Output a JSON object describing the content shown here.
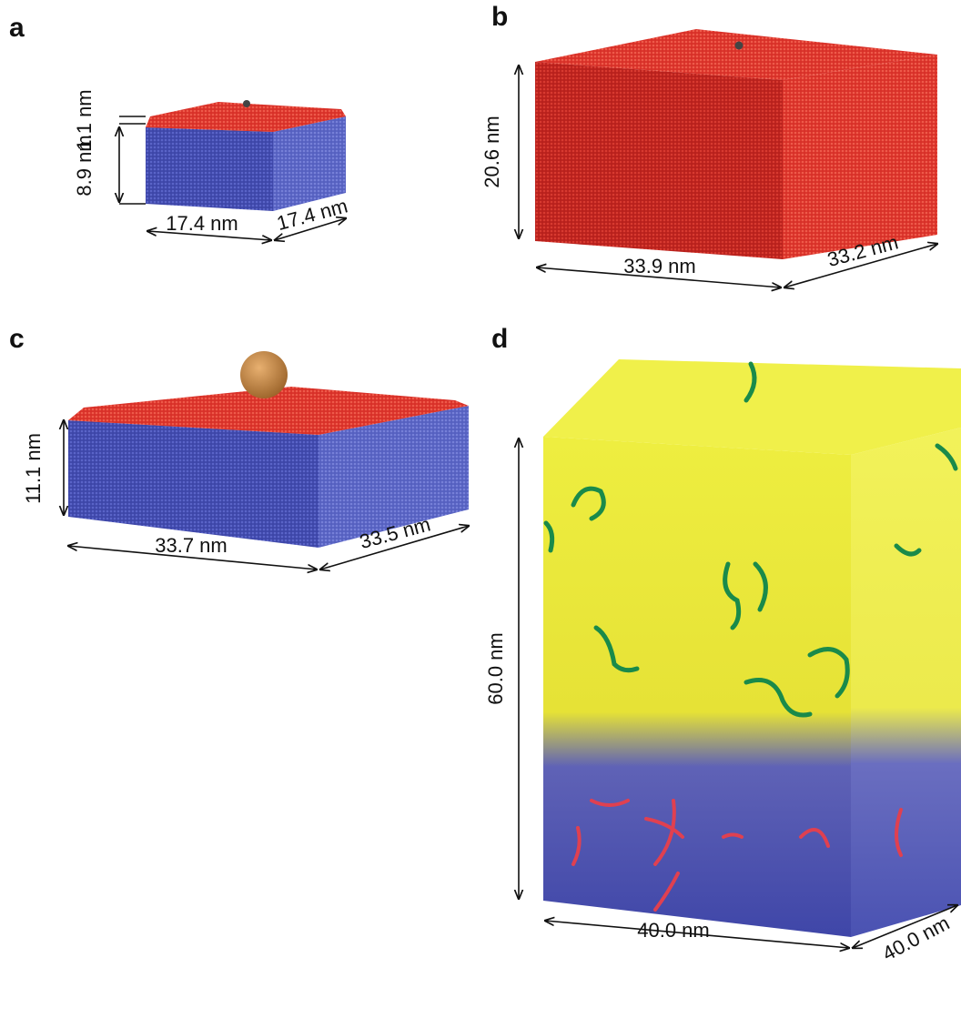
{
  "panels": [
    {
      "label": "a",
      "dimensions": [
        "1.1 nm",
        "8.9 nm",
        "17.4 nm",
        "17.4 nm"
      ]
    },
    {
      "label": "b",
      "dimensions": [
        "20.6 nm",
        "33.9 nm",
        "33.2 nm"
      ]
    },
    {
      "label": "c",
      "dimensions": [
        "11.1 nm",
        "33.7 nm",
        "33.5 nm"
      ]
    },
    {
      "label": "d",
      "dimensions": [
        "60.0 nm",
        "40.0 nm",
        "40.0 nm"
      ]
    }
  ]
}
